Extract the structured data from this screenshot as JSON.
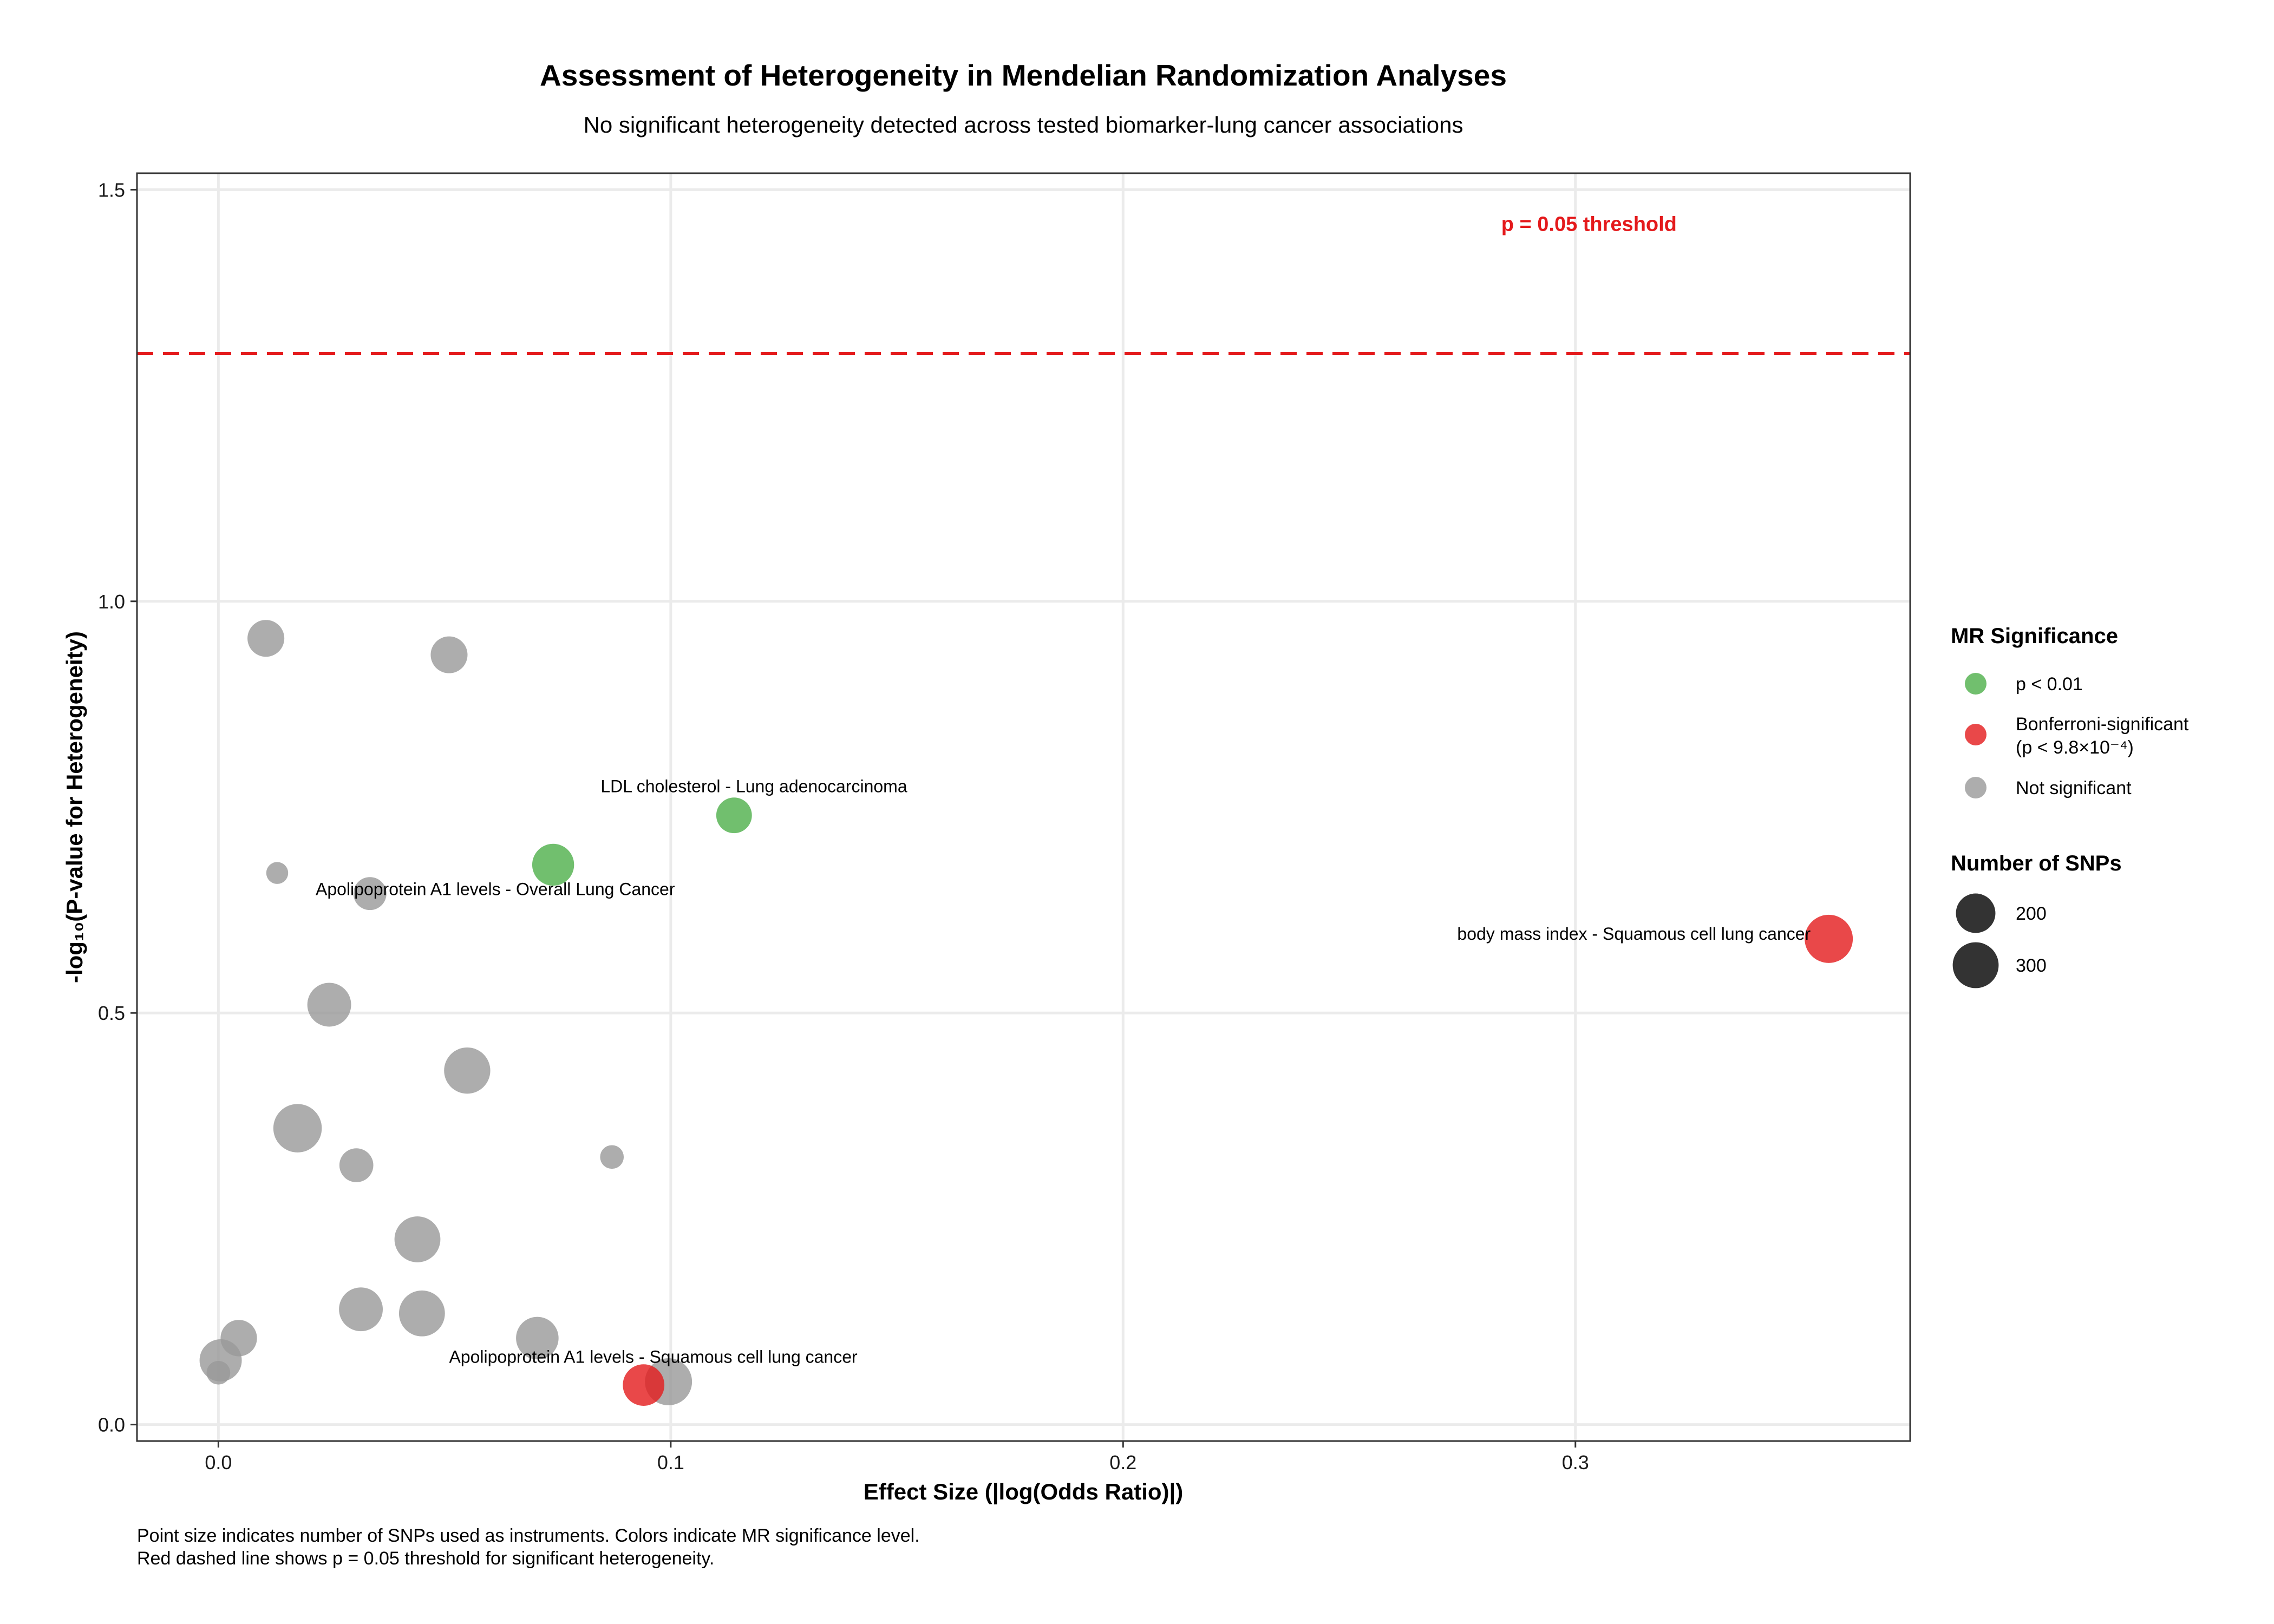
{
  "chart_data": {
    "type": "scatter",
    "title": "Assessment of Heterogeneity in Mendelian Randomization Analyses",
    "subtitle": "No significant heterogeneity detected across tested biomarker-lung cancer associations",
    "xlabel": "Effect Size (|log(Odds Ratio)|)",
    "ylabel": "-log₁₀(P-value for Heterogeneity)",
    "xlim": [
      -0.018,
      0.374
    ],
    "ylim": [
      -0.02,
      1.52
    ],
    "x_ticks": [
      {
        "value": 0.0,
        "label": "0.0"
      },
      {
        "value": 0.1,
        "label": "0.1"
      },
      {
        "value": 0.2,
        "label": "0.2"
      },
      {
        "value": 0.3,
        "label": "0.3"
      }
    ],
    "y_ticks": [
      {
        "value": 0.0,
        "label": "0.0"
      },
      {
        "value": 0.5,
        "label": "0.5"
      },
      {
        "value": 1.0,
        "label": "1.0"
      },
      {
        "value": 1.5,
        "label": "1.5"
      }
    ],
    "grid": true,
    "threshold": {
      "value": 1.301,
      "label": "p = 0.05 threshold",
      "label_x": 0.303,
      "label_y": 1.45,
      "color": "#E41A1C"
    },
    "colors": {
      "p < 0.01": "#4DAF4A",
      "Bonferroni-significant": "#E41A1C",
      "Not significant": "#999999"
    },
    "series": [
      {
        "name": "p < 0.01",
        "color": "#4DAF4A",
        "points": [
          {
            "x": 0.114,
            "y": 0.74,
            "snps": 150
          },
          {
            "x": 0.074,
            "y": 0.68,
            "snps": 235
          }
        ]
      },
      {
        "name": "Bonferroni-significant",
        "color": "#E41A1C",
        "points": [
          {
            "x": 0.356,
            "y": 0.59,
            "snps": 340
          },
          {
            "x": 0.094,
            "y": 0.048,
            "snps": 230
          }
        ]
      },
      {
        "name": "Not significant",
        "color": "#999999",
        "points": [
          {
            "x": 0.0105,
            "y": 0.955,
            "snps": 165
          },
          {
            "x": 0.051,
            "y": 0.935,
            "snps": 165
          },
          {
            "x": 0.013,
            "y": 0.67,
            "snps": 30
          },
          {
            "x": 0.0335,
            "y": 0.645,
            "snps": 120
          },
          {
            "x": 0.0245,
            "y": 0.51,
            "snps": 265
          },
          {
            "x": 0.055,
            "y": 0.43,
            "snps": 305
          },
          {
            "x": 0.0175,
            "y": 0.36,
            "snps": 345
          },
          {
            "x": 0.0305,
            "y": 0.315,
            "snps": 130
          },
          {
            "x": 0.087,
            "y": 0.325,
            "snps": 40
          },
          {
            "x": 0.044,
            "y": 0.225,
            "snps": 300
          },
          {
            "x": 0.0315,
            "y": 0.14,
            "snps": 265
          },
          {
            "x": 0.045,
            "y": 0.135,
            "snps": 300
          },
          {
            "x": 0.0705,
            "y": 0.105,
            "snps": 245
          },
          {
            "x": 0.0045,
            "y": 0.105,
            "snps": 160
          },
          {
            "x": 0.0005,
            "y": 0.078,
            "snps": 240
          },
          {
            "x": 0.0,
            "y": 0.063,
            "snps": 40
          },
          {
            "x": 0.0995,
            "y": 0.052,
            "snps": 320
          }
        ]
      }
    ],
    "annotations": [
      {
        "text": "LDL cholesterol - Lung adenocarcinoma",
        "x": 0.0845,
        "y": 0.768,
        "anchor": "start"
      },
      {
        "text": "Apolipoprotein A1 levels - Overall Lung Cancer",
        "x": 0.0215,
        "y": 0.643,
        "anchor": "start"
      },
      {
        "text": "body mass index - Squamous cell lung cancer",
        "x": 0.352,
        "y": 0.589,
        "anchor": "end"
      },
      {
        "text": "Apolipoprotein A1 levels - Squamous cell lung cancer",
        "x": 0.051,
        "y": 0.075,
        "anchor": "start"
      }
    ],
    "legend": {
      "position": "right",
      "color_title": "MR Significance",
      "color_items": [
        {
          "label": "p < 0.01",
          "color": "#4DAF4A"
        },
        {
          "label": "Bonferroni-significant",
          "label2": "(p < 9.8×10⁻⁴)",
          "color": "#E41A1C"
        },
        {
          "label": "Not significant",
          "color": "#999999"
        }
      ],
      "size_title": "Number of SNPs",
      "size_items": [
        {
          "label": "200",
          "snps": 200
        },
        {
          "label": "300",
          "snps": 300
        }
      ]
    },
    "caption": [
      "Point size indicates number of SNPs used as instruments. Colors indicate MR significance level.",
      "Red dashed line shows p = 0.05 threshold for significant heterogeneity."
    ]
  }
}
